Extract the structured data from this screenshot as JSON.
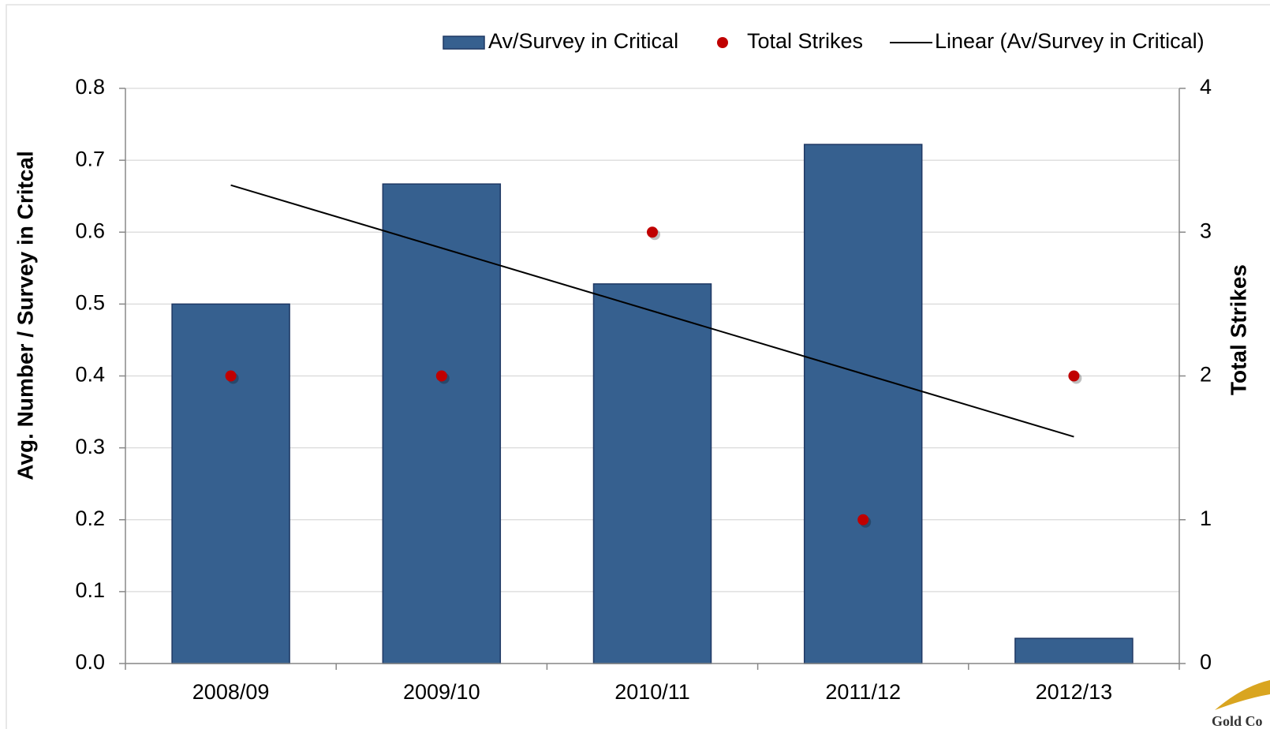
{
  "chart_data": {
    "type": "bar",
    "categories": [
      "2008/09",
      "2009/10",
      "2010/11",
      "2011/12",
      "2012/13"
    ],
    "series": [
      {
        "name": "Av/Survey in Critical",
        "type": "bar",
        "axis": "y",
        "color": "#36608f",
        "values": [
          0.5,
          0.667,
          0.528,
          0.722,
          0.035
        ]
      },
      {
        "name": "Total Strikes",
        "type": "scatter",
        "axis": "y2",
        "color": "#c00000",
        "values": [
          2,
          2,
          3,
          1,
          2
        ]
      }
    ],
    "trendline": {
      "name": "Linear (Av/Survey in Critical)",
      "color": "#000000"
    },
    "y_label": "Avg. Number / Survey in Critcal",
    "y2_label": "Total Strikes",
    "ylim": [
      0,
      0.8
    ],
    "yticks": [
      {
        "value": 0,
        "label": "0.0"
      },
      0.1,
      0.2,
      0.3,
      0.4,
      0.5,
      0.6,
      0.7,
      0.8
    ],
    "y2lim": [
      0,
      4
    ],
    "y2ticks": [
      0,
      1,
      2,
      3,
      4
    ],
    "grid": true,
    "legend": "top-right"
  },
  "logo": "Gold Co"
}
